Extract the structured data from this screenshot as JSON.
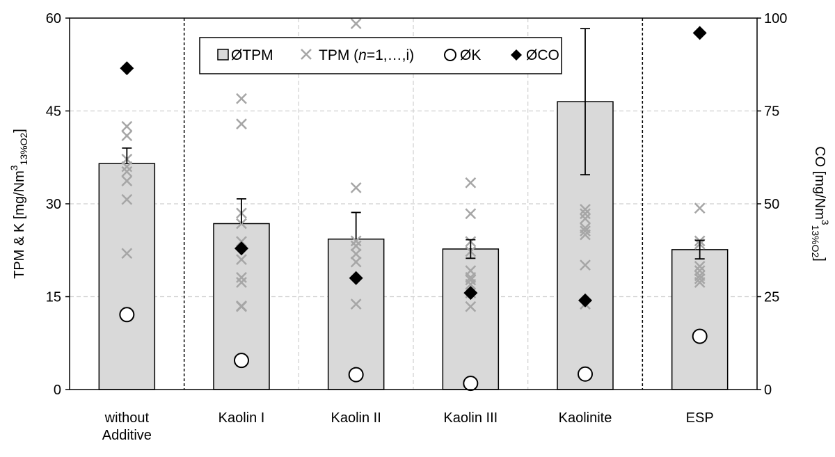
{
  "chart_data": {
    "type": "bar",
    "categories": [
      [
        "without",
        "Additive"
      ],
      [
        "Kaolin I"
      ],
      [
        "Kaolin II"
      ],
      [
        "Kaolin III"
      ],
      [
        "Kaolinite"
      ],
      [
        "ESP"
      ]
    ],
    "y_left": {
      "label_main": "TPM & K [mg/Nm",
      "label_sup": "3",
      "label_sub": "13%O2",
      "label_end": "]",
      "ylim": [
        0,
        60
      ],
      "ticks": [
        "0",
        "15",
        "30",
        "45",
        "60"
      ]
    },
    "y_right": {
      "label_main": "CO [mg/Nm",
      "label_sup": "3",
      "label_sub": "13%O2",
      "label_end": "]",
      "ylim": [
        0,
        100
      ],
      "ticks": [
        "0",
        "25",
        "50",
        "75",
        "100"
      ]
    },
    "grid": true,
    "group_separators_after_category": [
      0,
      4
    ],
    "legend": {
      "placement": "top-center",
      "entries": [
        {
          "symbol": "bar",
          "text": "ØTPM"
        },
        {
          "symbol": "cross",
          "text": "TPM (n=1,…,i)",
          "parts": [
            "TPM (",
            "n",
            "=1,…,i)"
          ]
        },
        {
          "symbol": "circle",
          "text": "ØK"
        },
        {
          "symbol": "diamond",
          "text": "ØCO"
        }
      ]
    },
    "series": [
      {
        "name": "ØTPM",
        "axis": "left",
        "values": [
          36.5,
          26.8,
          24.3,
          22.7,
          46.5,
          22.6
        ],
        "error_upper": [
          2.5,
          4.0,
          4.3,
          1.5,
          11.8,
          1.5
        ],
        "error_lower": [
          0,
          0,
          0,
          1.5,
          11.8,
          1.5
        ]
      },
      {
        "name": "TPM (n=1,…,i)",
        "axis": "left",
        "points": [
          [
            22.0,
            30.7,
            33.7,
            35.2,
            36.0,
            37.2,
            41.0,
            42.5
          ],
          [
            13.4,
            13.5,
            17.3,
            18.1,
            21.0,
            23.9,
            26.8,
            28.5,
            42.9,
            47.0
          ],
          [
            13.8,
            20.6,
            21.9,
            23.2,
            24.0,
            32.6,
            59.1
          ],
          [
            13.4,
            15.6,
            17.0,
            17.7,
            18.1,
            19.2,
            22.3,
            23.9,
            28.4,
            33.4
          ],
          [
            13.8,
            20.1,
            25.0,
            25.6,
            26.1,
            27.6,
            28.4,
            29.1
          ],
          [
            17.3,
            17.9,
            18.4,
            19.2,
            19.9,
            23.5,
            24.0,
            29.3
          ]
        ]
      },
      {
        "name": "ØK",
        "axis": "left",
        "values": [
          12.1,
          4.7,
          2.4,
          1.0,
          2.5,
          8.6
        ]
      },
      {
        "name": "ØCO",
        "axis": "right",
        "values": [
          86.5,
          38.0,
          30.0,
          26.0,
          24.0,
          96.0
        ]
      }
    ],
    "colors": {
      "bar_fill": "#d9d9d9",
      "bar_stroke": "#000000",
      "cross": "#a6a6a6",
      "circle_fill": "#ffffff",
      "diamond": "#000000",
      "grid": "#cfcfcf"
    }
  }
}
